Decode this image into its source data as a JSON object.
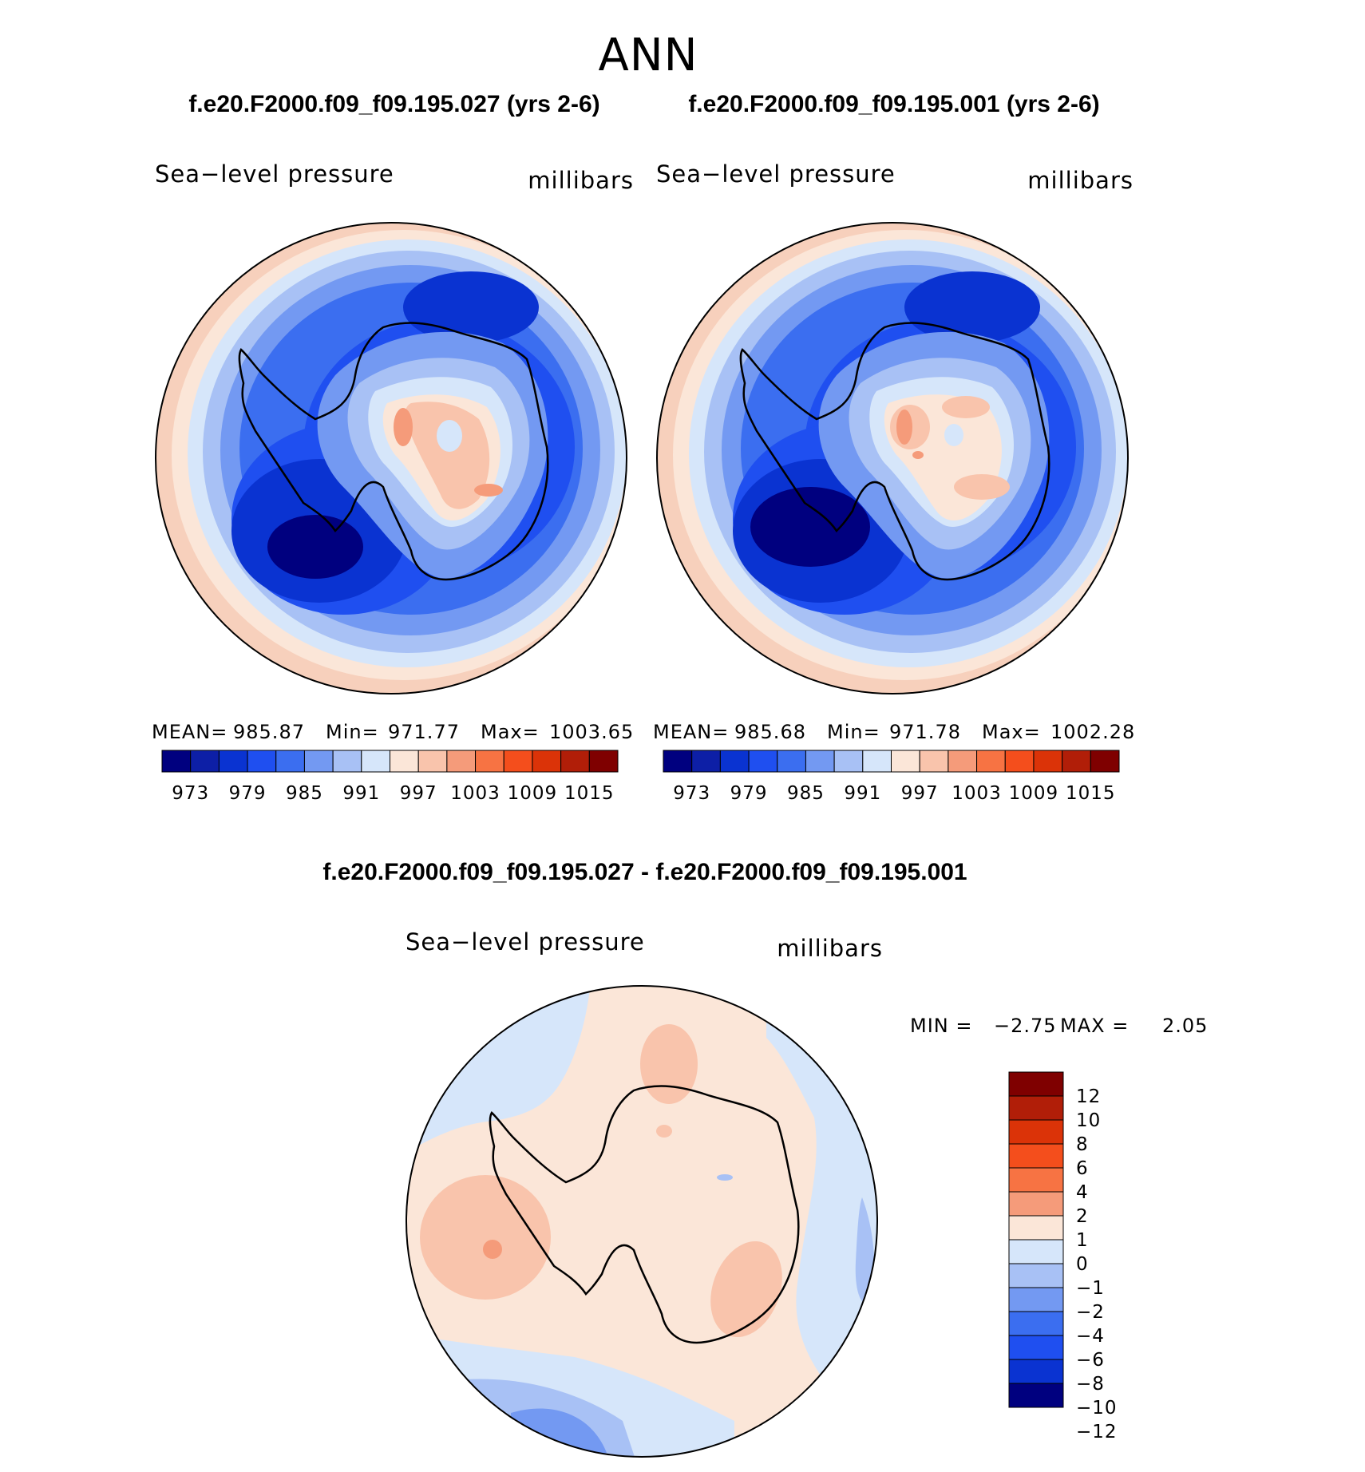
{
  "header": {
    "season": "ANN"
  },
  "panels": [
    {
      "title": "f.e20.F2000.f09_f09.195.027 (yrs 2-6)",
      "variable": "Sea−level pressure",
      "units": "millibars",
      "stats": {
        "mean_label": "MEAN=",
        "mean": "985.87",
        "min_label": "Min=",
        "min": "971.77",
        "max_label": "Max=",
        "max": "1003.65"
      }
    },
    {
      "title": "f.e20.F2000.f09_f09.195.001 (yrs 2-6)",
      "variable": "Sea−level pressure",
      "units": "millibars",
      "stats": {
        "mean_label": "MEAN=",
        "mean": "985.68",
        "min_label": "Min=",
        "min": "971.78",
        "max_label": "Max=",
        "max": "1002.28"
      }
    }
  ],
  "colorbar": {
    "colors": [
      "#00007f",
      "#0d1fa6",
      "#0a33d1",
      "#1f4ff0",
      "#3b6ef0",
      "#7399f2",
      "#a8c1f5",
      "#d6e6fa",
      "#fbe6d8",
      "#f9c4ac",
      "#f59b7a",
      "#f77343",
      "#f44e1c",
      "#db3308",
      "#b11e08",
      "#7f0000"
    ],
    "labels": [
      "973",
      "979",
      "985",
      "991",
      "997",
      "1003",
      "1009",
      "1015"
    ]
  },
  "difference": {
    "title": "f.e20.F2000.f09_f09.195.027 - f.e20.F2000.f09_f09.195.001",
    "variable": "Sea−level pressure",
    "units": "millibars",
    "min_label": "MIN =",
    "min": "−2.75",
    "max_label": "MAX =",
    "max": "2.05",
    "colorbar": {
      "colors": [
        "#7f0000",
        "#b11e08",
        "#db3308",
        "#f44e1c",
        "#f77343",
        "#f59b7a",
        "#fbe6d8",
        "#d6e6fa",
        "#a8c1f5",
        "#7399f2",
        "#3b6ef0",
        "#1f4ff0",
        "#0a33d1",
        "#00007f"
      ],
      "labels": [
        "12",
        "10",
        "8",
        "6",
        "4",
        "2",
        "1",
        "0",
        "−1",
        "−2",
        "−4",
        "−6",
        "−8",
        "−10",
        "−12"
      ]
    }
  }
}
